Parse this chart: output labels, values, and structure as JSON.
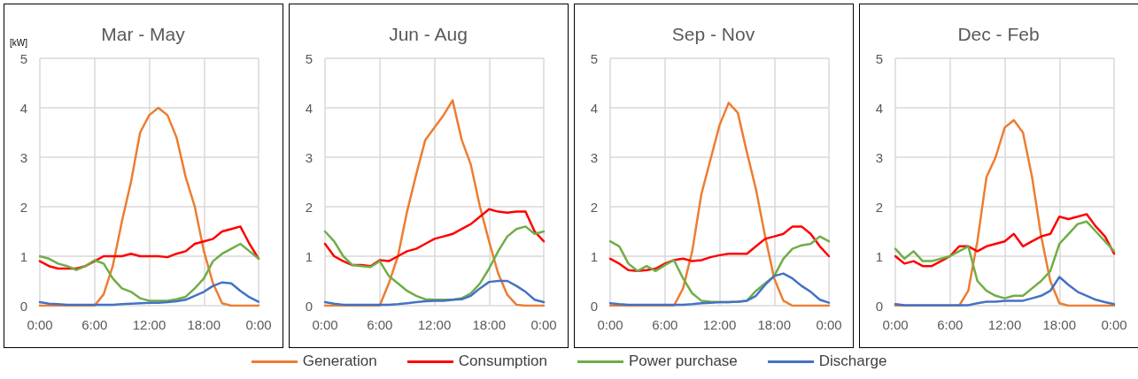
{
  "chart_data": [
    {
      "type": "line",
      "title": "Mar - May",
      "ylabel": "[kW]",
      "x": [
        0,
        1,
        2,
        3,
        4,
        5,
        6,
        7,
        8,
        9,
        10,
        11,
        12,
        13,
        14,
        15,
        16,
        17,
        18,
        19,
        20,
        21,
        22,
        23,
        24
      ],
      "xlim": [
        0,
        24
      ],
      "xticks": [
        {
          "value": 0,
          "label": "0:00"
        },
        {
          "value": 6,
          "label": "6:00"
        },
        {
          "value": 12,
          "label": "12:00"
        },
        {
          "value": 18,
          "label": "18:00"
        },
        {
          "value": 24,
          "label": "0:00"
        }
      ],
      "ylim": [
        0,
        5
      ],
      "yticks": [
        0,
        1,
        2,
        3,
        4,
        5
      ],
      "grid": true,
      "legend": "bottom",
      "marker": "none",
      "series": [
        {
          "name": "Generation",
          "color": "#ed7d31",
          "values": [
            0,
            0,
            0,
            0,
            0,
            0,
            0,
            0.23,
            0.8,
            1.7,
            2.5,
            3.5,
            3.85,
            4.0,
            3.85,
            3.4,
            2.6,
            2.0,
            1.1,
            0.45,
            0.05,
            0,
            0,
            0,
            0
          ]
        },
        {
          "name": "Consumption",
          "color": "#ff0000",
          "values": [
            0.9,
            0.8,
            0.75,
            0.75,
            0.75,
            0.8,
            0.9,
            1.0,
            1.0,
            1.0,
            1.05,
            1.0,
            1.0,
            1.0,
            0.98,
            1.05,
            1.1,
            1.25,
            1.3,
            1.35,
            1.5,
            1.55,
            1.6,
            1.25,
            0.95
          ]
        },
        {
          "name": "Power purchase",
          "color": "#70ad47",
          "values": [
            1.0,
            0.95,
            0.85,
            0.8,
            0.72,
            0.8,
            0.92,
            0.85,
            0.55,
            0.35,
            0.28,
            0.15,
            0.1,
            0.1,
            0.1,
            0.13,
            0.18,
            0.35,
            0.55,
            0.9,
            1.05,
            1.15,
            1.25,
            1.1,
            0.95
          ]
        },
        {
          "name": "Discharge",
          "color": "#4472c4",
          "values": [
            0.07,
            0.04,
            0.03,
            0.02,
            0.02,
            0.02,
            0.02,
            0.02,
            0.02,
            0.03,
            0.04,
            0.05,
            0.06,
            0.06,
            0.07,
            0.09,
            0.12,
            0.2,
            0.28,
            0.4,
            0.47,
            0.45,
            0.3,
            0.17,
            0.08
          ]
        }
      ]
    },
    {
      "type": "line",
      "title": "Jun - Aug",
      "x": [
        0,
        1,
        2,
        3,
        4,
        5,
        6,
        7,
        8,
        9,
        10,
        11,
        12,
        13,
        14,
        15,
        16,
        17,
        18,
        19,
        20,
        21,
        22,
        23,
        24
      ],
      "xlim": [
        0,
        24
      ],
      "xticks": [
        {
          "value": 0,
          "label": "0:00"
        },
        {
          "value": 6,
          "label": "6:00"
        },
        {
          "value": 12,
          "label": "12:00"
        },
        {
          "value": 18,
          "label": "18:00"
        },
        {
          "value": 24,
          "label": "0:00"
        }
      ],
      "ylim": [
        0,
        5
      ],
      "yticks": [
        0,
        1,
        2,
        3,
        4,
        5
      ],
      "grid": true,
      "marker": "none",
      "series": [
        {
          "color": "#ed7d31",
          "values": [
            0,
            0,
            0,
            0,
            0,
            0,
            0,
            0.45,
            1.0,
            1.9,
            2.65,
            3.35,
            3.6,
            3.85,
            4.15,
            3.35,
            2.85,
            2.0,
            1.3,
            0.65,
            0.22,
            0.02,
            0,
            0,
            0
          ]
        },
        {
          "color": "#ff0000",
          "values": [
            1.25,
            1.0,
            0.9,
            0.82,
            0.82,
            0.8,
            0.92,
            0.9,
            1.0,
            1.1,
            1.15,
            1.25,
            1.35,
            1.4,
            1.45,
            1.55,
            1.65,
            1.8,
            1.95,
            1.9,
            1.88,
            1.9,
            1.9,
            1.5,
            1.3
          ]
        },
        {
          "color": "#70ad47",
          "values": [
            1.5,
            1.3,
            1.0,
            0.82,
            0.8,
            0.78,
            0.9,
            0.6,
            0.45,
            0.3,
            0.2,
            0.13,
            0.12,
            0.12,
            0.12,
            0.15,
            0.25,
            0.45,
            0.75,
            1.1,
            1.4,
            1.55,
            1.6,
            1.45,
            1.5
          ]
        },
        {
          "color": "#4472c4",
          "values": [
            0.07,
            0.04,
            0.02,
            0.02,
            0.02,
            0.02,
            0.02,
            0.02,
            0.03,
            0.05,
            0.07,
            0.09,
            0.1,
            0.1,
            0.12,
            0.13,
            0.2,
            0.35,
            0.48,
            0.5,
            0.5,
            0.4,
            0.28,
            0.12,
            0.07
          ]
        }
      ]
    },
    {
      "type": "line",
      "title": "Sep - Nov",
      "x": [
        0,
        1,
        2,
        3,
        4,
        5,
        6,
        7,
        8,
        9,
        10,
        11,
        12,
        13,
        14,
        15,
        16,
        17,
        18,
        19,
        20,
        21,
        22,
        23,
        24
      ],
      "xlim": [
        0,
        24
      ],
      "xticks": [
        {
          "value": 0,
          "label": "0:00"
        },
        {
          "value": 6,
          "label": "6:00"
        },
        {
          "value": 12,
          "label": "12:00"
        },
        {
          "value": 18,
          "label": "18:00"
        },
        {
          "value": 24,
          "label": "0:00"
        }
      ],
      "ylim": [
        0,
        5
      ],
      "yticks": [
        0,
        1,
        2,
        3,
        4,
        5
      ],
      "grid": true,
      "marker": "none",
      "series": [
        {
          "color": "#ed7d31",
          "values": [
            0,
            0,
            0,
            0,
            0,
            0,
            0,
            0,
            0.35,
            1.1,
            2.25,
            2.95,
            3.65,
            4.1,
            3.9,
            3.1,
            2.35,
            1.4,
            0.55,
            0.1,
            0,
            0,
            0,
            0,
            0
          ]
        },
        {
          "color": "#ff0000",
          "values": [
            0.95,
            0.85,
            0.72,
            0.7,
            0.72,
            0.75,
            0.85,
            0.92,
            0.95,
            0.9,
            0.92,
            0.98,
            1.02,
            1.05,
            1.05,
            1.05,
            1.2,
            1.35,
            1.4,
            1.45,
            1.6,
            1.6,
            1.45,
            1.2,
            1.0
          ]
        },
        {
          "color": "#70ad47",
          "values": [
            1.3,
            1.2,
            0.85,
            0.7,
            0.8,
            0.7,
            0.82,
            0.92,
            0.55,
            0.25,
            0.1,
            0.08,
            0.07,
            0.07,
            0.08,
            0.1,
            0.3,
            0.45,
            0.6,
            0.95,
            1.15,
            1.22,
            1.25,
            1.4,
            1.3
          ]
        },
        {
          "color": "#4472c4",
          "values": [
            0.05,
            0.03,
            0.02,
            0.02,
            0.02,
            0.02,
            0.02,
            0.02,
            0.02,
            0.03,
            0.05,
            0.06,
            0.07,
            0.07,
            0.08,
            0.1,
            0.2,
            0.42,
            0.6,
            0.65,
            0.55,
            0.4,
            0.28,
            0.12,
            0.06
          ]
        }
      ]
    },
    {
      "type": "line",
      "title": "Dec - Feb",
      "x": [
        0,
        1,
        2,
        3,
        4,
        5,
        6,
        7,
        8,
        9,
        10,
        11,
        12,
        13,
        14,
        15,
        16,
        17,
        18,
        19,
        20,
        21,
        22,
        23,
        24
      ],
      "xlim": [
        0,
        24
      ],
      "xticks": [
        {
          "value": 0,
          "label": "0:00"
        },
        {
          "value": 6,
          "label": "6:00"
        },
        {
          "value": 12,
          "label": "12:00"
        },
        {
          "value": 18,
          "label": "18:00"
        },
        {
          "value": 24,
          "label": "0:00"
        }
      ],
      "ylim": [
        0,
        5
      ],
      "yticks": [
        0,
        1,
        2,
        3,
        4,
        5
      ],
      "grid": true,
      "marker": "none",
      "series": [
        {
          "color": "#ed7d31",
          "values": [
            0,
            0,
            0,
            0,
            0,
            0,
            0,
            0,
            0.3,
            1.3,
            2.6,
            3.0,
            3.6,
            3.75,
            3.5,
            2.6,
            1.4,
            0.5,
            0.05,
            0,
            0,
            0,
            0,
            0,
            0
          ]
        },
        {
          "color": "#ff0000",
          "values": [
            1.0,
            0.85,
            0.9,
            0.8,
            0.8,
            0.9,
            1.0,
            1.2,
            1.2,
            1.1,
            1.2,
            1.25,
            1.3,
            1.45,
            1.2,
            1.3,
            1.4,
            1.45,
            1.8,
            1.75,
            1.8,
            1.85,
            1.6,
            1.4,
            1.05
          ]
        },
        {
          "color": "#70ad47",
          "values": [
            1.15,
            0.95,
            1.1,
            0.9,
            0.9,
            0.95,
            1.0,
            1.1,
            1.2,
            0.5,
            0.3,
            0.2,
            0.15,
            0.2,
            0.2,
            0.35,
            0.5,
            0.7,
            1.25,
            1.45,
            1.65,
            1.7,
            1.5,
            1.3,
            1.1
          ]
        },
        {
          "color": "#4472c4",
          "values": [
            0.03,
            0.01,
            0.01,
            0.01,
            0.01,
            0.01,
            0.01,
            0.01,
            0.01,
            0.05,
            0.08,
            0.08,
            0.1,
            0.1,
            0.1,
            0.15,
            0.2,
            0.3,
            0.58,
            0.42,
            0.28,
            0.2,
            0.12,
            0.07,
            0.03
          ]
        }
      ]
    }
  ]
}
